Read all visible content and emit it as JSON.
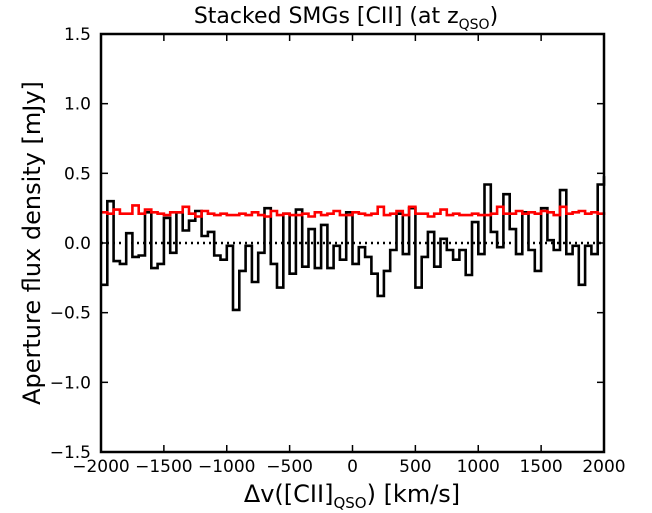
{
  "chart_data": {
    "type": "line",
    "title": "Stacked SMGs [CII] (at z",
    "title_sub": "QSO",
    "title_close": ")",
    "xlabel": "Δv([CII]",
    "xlabel_sub": "QSO",
    "xlabel_close": ") [km/s]",
    "ylabel": "Aperture flux density [mJy]",
    "xlim": [
      -2000,
      2000
    ],
    "ylim": [
      -1.5,
      1.5
    ],
    "xticks": [
      -2000,
      -1500,
      -1000,
      -500,
      0,
      500,
      1000,
      1500,
      2000
    ],
    "xtick_labels": [
      "−2000",
      "−1500",
      "−1000",
      "−500",
      "0",
      "500",
      "1000",
      "1500",
      "2000"
    ],
    "yticks": [
      -1.5,
      -1.0,
      -0.5,
      0.0,
      0.5,
      1.0,
      1.5
    ],
    "ytick_labels": [
      "−1.5",
      "−1.0",
      "−0.5",
      "0.0",
      "0.5",
      "1.0",
      "1.5"
    ],
    "grid": false,
    "step_width": 50,
    "zero_line": 0.0,
    "series": [
      {
        "color": "#000000",
        "style": "step",
        "x": [
          -2000,
          -1950,
          -1900,
          -1850,
          -1800,
          -1750,
          -1700,
          -1650,
          -1600,
          -1550,
          -1500,
          -1450,
          -1400,
          -1350,
          -1300,
          -1250,
          -1200,
          -1150,
          -1100,
          -1050,
          -1000,
          -950,
          -900,
          -850,
          -800,
          -750,
          -700,
          -650,
          -600,
          -550,
          -500,
          -450,
          -400,
          -350,
          -300,
          -250,
          -200,
          -150,
          -100,
          -50,
          0,
          50,
          100,
          150,
          200,
          250,
          300,
          350,
          400,
          450,
          500,
          550,
          600,
          650,
          700,
          750,
          800,
          850,
          900,
          950,
          1000,
          1050,
          1100,
          1150,
          1200,
          1250,
          1300,
          1350,
          1400,
          1450,
          1500,
          1550,
          1600,
          1650,
          1700,
          1750,
          1800,
          1850,
          1900,
          1950
        ],
        "values": [
          -0.3,
          0.3,
          -0.13,
          -0.15,
          0.07,
          -0.1,
          -0.09,
          0.22,
          -0.18,
          -0.15,
          0.18,
          -0.07,
          0.22,
          0.09,
          0.16,
          0.23,
          0.05,
          0.08,
          -0.09,
          -0.12,
          -0.02,
          -0.48,
          -0.2,
          -0.02,
          -0.28,
          -0.07,
          0.25,
          -0.15,
          -0.32,
          0.21,
          -0.22,
          0.24,
          -0.17,
          0.1,
          -0.18,
          0.13,
          -0.18,
          -0.02,
          -0.12,
          0.22,
          -0.15,
          -0.03,
          -0.1,
          -0.22,
          -0.38,
          -0.2,
          -0.05,
          0.21,
          -0.08,
          0.25,
          -0.32,
          -0.1,
          0.08,
          -0.17,
          0.03,
          -0.05,
          -0.12,
          -0.05,
          -0.23,
          0.15,
          -0.08,
          0.42,
          0.08,
          -0.03,
          0.35,
          0.1,
          -0.08,
          0.22,
          -0.05,
          -0.2,
          0.25,
          0.02,
          -0.05,
          0.38,
          -0.08,
          -0.02,
          -0.3,
          -0.02,
          -0.08,
          0.42
        ],
        "last_value": 0.48
      },
      {
        "color": "#ff0000",
        "style": "step",
        "x": [
          -2000,
          -1950,
          -1900,
          -1850,
          -1800,
          -1750,
          -1700,
          -1650,
          -1600,
          -1550,
          -1500,
          -1450,
          -1400,
          -1350,
          -1300,
          -1250,
          -1200,
          -1150,
          -1100,
          -1050,
          -1000,
          -950,
          -900,
          -850,
          -800,
          -750,
          -700,
          -650,
          -600,
          -550,
          -500,
          -450,
          -400,
          -350,
          -300,
          -250,
          -200,
          -150,
          -100,
          -50,
          0,
          50,
          100,
          150,
          200,
          250,
          300,
          350,
          400,
          450,
          500,
          550,
          600,
          650,
          700,
          750,
          800,
          850,
          900,
          950,
          1000,
          1050,
          1100,
          1150,
          1200,
          1250,
          1300,
          1350,
          1400,
          1450,
          1500,
          1550,
          1600,
          1650,
          1700,
          1750,
          1800,
          1850,
          1900,
          1950
        ],
        "values": [
          0.22,
          0.21,
          0.24,
          0.21,
          0.21,
          0.27,
          0.21,
          0.24,
          0.22,
          0.21,
          0.2,
          0.22,
          0.22,
          0.26,
          0.21,
          0.19,
          0.23,
          0.21,
          0.2,
          0.21,
          0.2,
          0.2,
          0.21,
          0.2,
          0.22,
          0.2,
          0.19,
          0.23,
          0.2,
          0.21,
          0.2,
          0.2,
          0.21,
          0.19,
          0.22,
          0.2,
          0.21,
          0.23,
          0.2,
          0.2,
          0.22,
          0.21,
          0.2,
          0.21,
          0.26,
          0.2,
          0.21,
          0.23,
          0.2,
          0.26,
          0.21,
          0.21,
          0.19,
          0.21,
          0.24,
          0.2,
          0.21,
          0.2,
          0.2,
          0.21,
          0.2,
          0.2,
          0.21,
          0.26,
          0.21,
          0.21,
          0.23,
          0.21,
          0.22,
          0.21,
          0.23,
          0.22,
          0.2,
          0.26,
          0.21,
          0.22,
          0.23,
          0.21,
          0.22,
          0.21
        ],
        "last_value": 0.22
      }
    ]
  }
}
